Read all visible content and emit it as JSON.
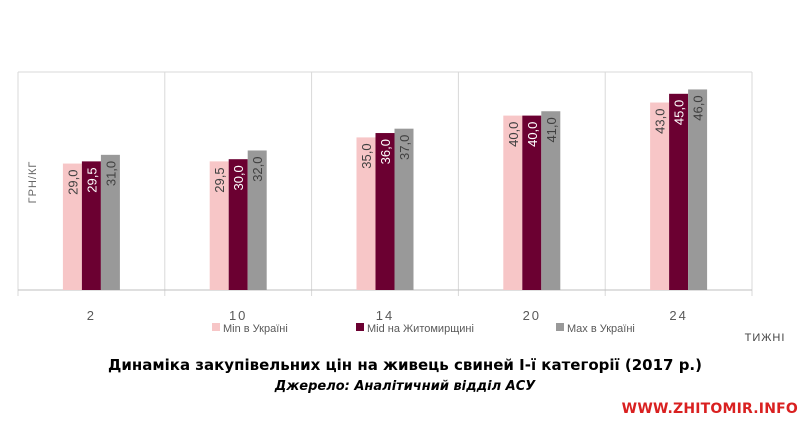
{
  "chart_data": {
    "type": "bar",
    "title": "Динаміка закупівельних цін на живець свиней І-ї категорії (2017 р.)",
    "subtitle": "Джерело: Аналітичний відділ АСУ",
    "xlabel": "ТИЖНІ",
    "ylabel": "ГРН/КГ",
    "categories": [
      "2",
      "10",
      "14",
      "20",
      "24"
    ],
    "ylim": [
      0,
      50
    ],
    "grid": true,
    "legend": "bottom",
    "series": [
      {
        "name": "Min в Україні",
        "color": "#f7c6c7",
        "values": [
          29.0,
          29.5,
          35.0,
          40.0,
          43.0
        ],
        "labels": [
          "29,0",
          "29,5",
          "35,0",
          "40,0",
          "43,0"
        ]
      },
      {
        "name": "Mid на Житомирщині",
        "color": "#6b0031",
        "values": [
          29.5,
          30.0,
          36.0,
          40.0,
          45.0
        ],
        "labels": [
          "29,5",
          "30,0",
          "36,0",
          "40,0",
          "45,0"
        ]
      },
      {
        "name": "Max в Україні",
        "color": "#999999",
        "values": [
          31.0,
          32.0,
          37.0,
          41.0,
          46.0
        ],
        "labels": [
          "31,0",
          "32,0",
          "37,0",
          "41,0",
          "46,0"
        ]
      }
    ]
  },
  "watermark": "WWW.ZHITOMIR.INFO"
}
